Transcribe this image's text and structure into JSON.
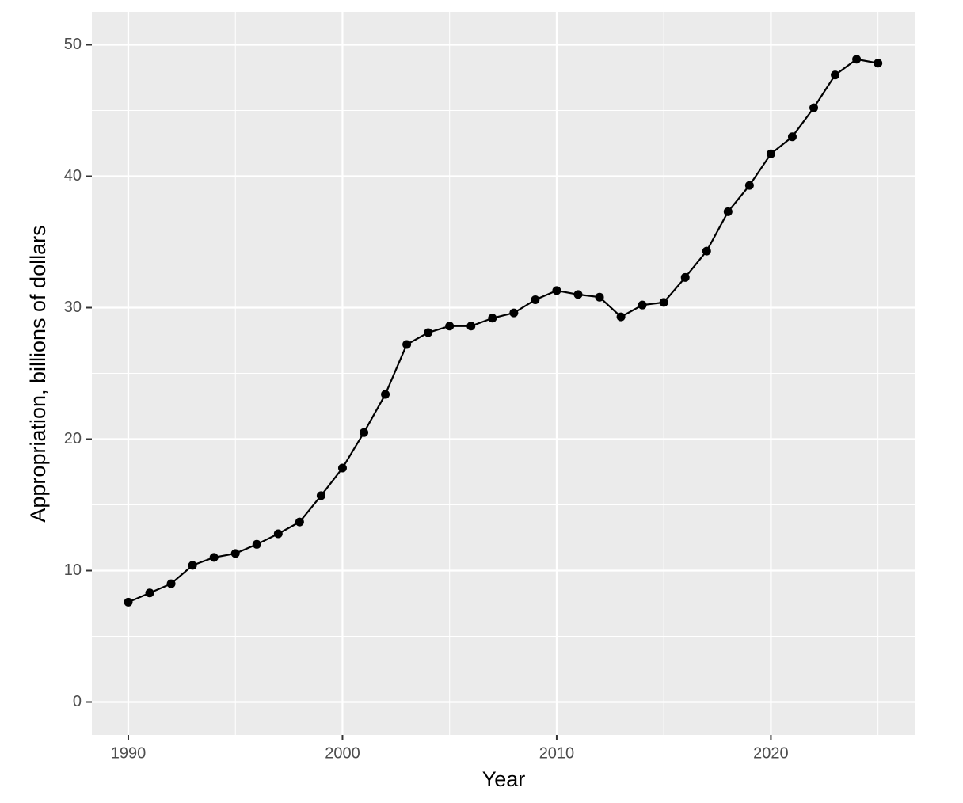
{
  "chart_data": {
    "type": "line",
    "x_label": "Year",
    "y_label": "Appropriation, billions of dollars",
    "x": [
      1990,
      1991,
      1992,
      1993,
      1994,
      1995,
      1996,
      1997,
      1998,
      1999,
      2000,
      2001,
      2002,
      2003,
      2004,
      2005,
      2006,
      2007,
      2008,
      2009,
      2010,
      2011,
      2012,
      2013,
      2014,
      2015,
      2016,
      2017,
      2018,
      2019,
      2020,
      2021,
      2022,
      2023,
      2024,
      2025
    ],
    "series": [
      {
        "color": "#000000",
        "values": [
          7.6,
          8.3,
          9.0,
          10.4,
          11.0,
          11.3,
          12.0,
          12.8,
          13.7,
          15.7,
          17.8,
          20.5,
          23.4,
          27.2,
          28.1,
          28.6,
          28.6,
          29.2,
          29.6,
          30.6,
          31.3,
          31.0,
          30.8,
          29.3,
          30.2,
          30.4,
          32.3,
          34.3,
          37.3,
          39.3,
          41.7,
          43.0,
          45.2,
          47.7,
          48.9,
          48.6
        ]
      }
    ],
    "xlim": [
      1988.3,
      2026.75
    ],
    "ylim": [
      -2.5,
      52.5
    ],
    "xticks": [
      1990,
      2000,
      2010,
      2020
    ],
    "yticks": [
      0,
      10,
      20,
      30,
      40,
      50
    ],
    "xminor": [
      1995,
      2005,
      2015,
      2025
    ],
    "yminor": [
      5,
      15,
      25,
      35,
      45
    ],
    "grid": true,
    "panel_color": "#ebebeb"
  }
}
